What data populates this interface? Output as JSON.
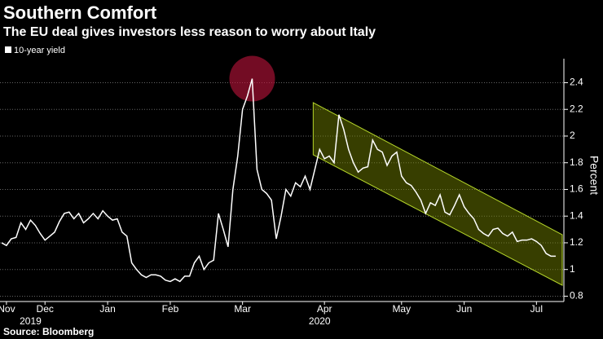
{
  "chart_data": {
    "type": "line",
    "title": "Southern Comfort",
    "subtitle": "The EU deal gives investors less reason to worry about Italy",
    "y_label": "Percent",
    "source": "Source: Bloomberg",
    "grid": true,
    "categories": [
      null,
      "Nov",
      null,
      null,
      null,
      null,
      null,
      null,
      null,
      "Dec",
      null,
      null,
      null,
      null,
      null,
      null,
      null,
      null,
      null,
      null,
      null,
      null,
      "Jan",
      null,
      null,
      null,
      null,
      null,
      null,
      null,
      null,
      null,
      null,
      null,
      null,
      "Feb",
      null,
      null,
      null,
      null,
      null,
      null,
      null,
      null,
      null,
      null,
      null,
      null,
      null,
      null,
      "Mar",
      null,
      null,
      null,
      null,
      null,
      null,
      null,
      null,
      null,
      null,
      null,
      null,
      null,
      null,
      null,
      null,
      "Apr",
      null,
      null,
      null,
      null,
      null,
      null,
      null,
      null,
      null,
      null,
      null,
      null,
      null,
      null,
      null,
      "May",
      null,
      null,
      null,
      null,
      null,
      null,
      null,
      null,
      null,
      null,
      null,
      null,
      "Jun",
      null,
      null,
      null,
      null,
      null,
      null,
      null,
      null,
      null,
      null,
      null,
      null,
      null,
      null,
      "Jul",
      null,
      null,
      null,
      null
    ],
    "year_labels": [
      null,
      null,
      null,
      null,
      null,
      null,
      "2019",
      null,
      null,
      null,
      null,
      null,
      null,
      null,
      null,
      null,
      null,
      null,
      null,
      null,
      null,
      null,
      null,
      null,
      null,
      null,
      null,
      null,
      null,
      null,
      null,
      null,
      null,
      null,
      null,
      null,
      null,
      null,
      null,
      null,
      null,
      null,
      null,
      null,
      null,
      null,
      null,
      null,
      null,
      null,
      null,
      null,
      null,
      null,
      null,
      null,
      null,
      null,
      null,
      null,
      null,
      null,
      null,
      null,
      null,
      null,
      "2020",
      null,
      null,
      null,
      null,
      null,
      null,
      null,
      null,
      null,
      null,
      null,
      null,
      null,
      null,
      null,
      null,
      null,
      null,
      null,
      null,
      null,
      null,
      null,
      null,
      null,
      null,
      null,
      null,
      null,
      null,
      null,
      null,
      null,
      null,
      null,
      null,
      null,
      null,
      null,
      null,
      null,
      null,
      null,
      null,
      null,
      null,
      null,
      null,
      null
    ],
    "series": [
      {
        "name": "10-year yield",
        "color": "#ffffff",
        "values": [
          1.2,
          1.18,
          1.23,
          1.24,
          1.35,
          1.3,
          1.37,
          1.33,
          1.27,
          1.22,
          1.25,
          1.28,
          1.36,
          1.42,
          1.43,
          1.38,
          1.42,
          1.35,
          1.38,
          1.42,
          1.38,
          1.44,
          1.4,
          1.37,
          1.38,
          1.28,
          1.25,
          1.05,
          1.0,
          0.96,
          0.94,
          0.96,
          0.96,
          0.95,
          0.92,
          0.91,
          0.93,
          0.91,
          0.95,
          0.95,
          1.05,
          1.1,
          1.0,
          1.05,
          1.07,
          1.42,
          1.3,
          1.17,
          1.6,
          1.85,
          2.2,
          2.3,
          2.43,
          1.75,
          1.6,
          1.57,
          1.52,
          1.23,
          1.4,
          1.6,
          1.55,
          1.65,
          1.62,
          1.7,
          1.6,
          1.75,
          1.9,
          1.83,
          1.85,
          1.8,
          2.16,
          2.05,
          1.9,
          1.8,
          1.73,
          1.76,
          1.77,
          1.97,
          1.9,
          1.88,
          1.78,
          1.85,
          1.88,
          1.7,
          1.65,
          1.63,
          1.58,
          1.52,
          1.42,
          1.5,
          1.48,
          1.56,
          1.43,
          1.41,
          1.48,
          1.56,
          1.47,
          1.42,
          1.38,
          1.3,
          1.27,
          1.25,
          1.3,
          1.31,
          1.27,
          1.25,
          1.28,
          1.21,
          1.22,
          1.22,
          1.23,
          1.21,
          1.18,
          1.12,
          1.1,
          1.1
        ]
      }
    ],
    "ylim": [
      0.76,
      2.58
    ],
    "yticks": [
      0.8,
      1.0,
      1.2,
      1.4,
      1.6,
      1.8,
      2.0,
      2.2,
      2.4
    ]
  }
}
